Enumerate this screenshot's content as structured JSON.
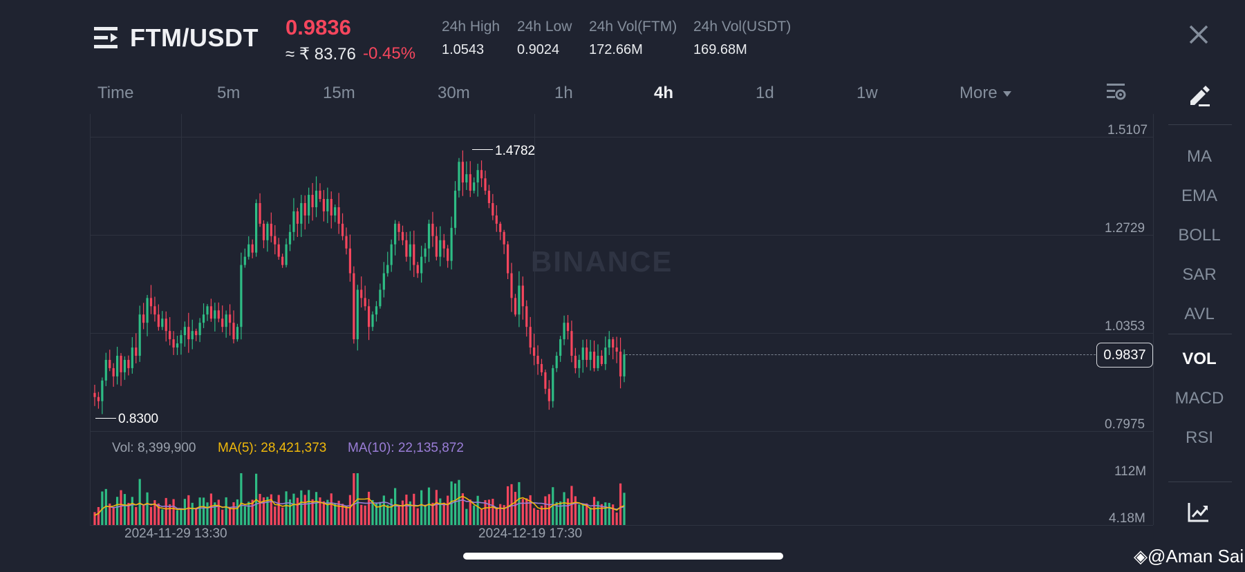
{
  "header": {
    "pair": "FTM/USDT",
    "price": "0.9836",
    "inr_value": "≈ ₹ 83.76",
    "change": "-0.45%",
    "stats": [
      {
        "label": "24h High",
        "value": "1.0543"
      },
      {
        "label": "24h Low",
        "value": "0.9024"
      },
      {
        "label": "24h Vol(FTM)",
        "value": "172.66M"
      },
      {
        "label": "24h Vol(USDT)",
        "value": "169.68M"
      }
    ]
  },
  "timeframes": {
    "time": "Time",
    "items": [
      "5m",
      "15m",
      "30m",
      "1h",
      "4h",
      "1d",
      "1w"
    ],
    "active": "4h",
    "more": "More"
  },
  "indicators": {
    "items": [
      "MA",
      "EMA",
      "BOLL",
      "SAR",
      "AVL",
      "VOL",
      "MACD",
      "RSI"
    ],
    "active": "VOL"
  },
  "chart": {
    "watermark": "BINANCE",
    "price_ticks": [
      "1.5107",
      "1.2729",
      "1.0353",
      "0.7975"
    ],
    "high_label": "1.4782",
    "low_label": "0.8300",
    "last_price": "0.9837",
    "volume_legend": {
      "vol": "Vol: 8,399,900",
      "ma5": "MA(5): 28,421,373",
      "ma10": "MA(10): 22,135,872"
    },
    "volume_ticks": [
      "112M",
      "4.18M"
    ],
    "dates": [
      "2024-11-29 13:30",
      "2024-12-19 17:30"
    ],
    "colors": {
      "up": "#2ebd85",
      "down": "#f6465d",
      "ma5": "#f0b90b",
      "ma10": "#9b7ed8",
      "background": "#1f2330"
    }
  },
  "chart_data": {
    "type": "candlestick",
    "ylim": [
      0.7975,
      1.5107
    ],
    "closes": [
      0.88,
      0.87,
      0.92,
      0.97,
      0.95,
      0.93,
      0.98,
      0.94,
      0.97,
      0.95,
      1.0,
      0.98,
      1.08,
      1.06,
      1.12,
      1.1,
      1.08,
      1.05,
      1.07,
      1.04,
      1.02,
      1.0,
      1.01,
      1.03,
      1.05,
      1.02,
      1.04,
      1.03,
      1.06,
      1.08,
      1.1,
      1.07,
      1.09,
      1.07,
      1.05,
      1.08,
      1.06,
      1.02,
      1.05,
      1.2,
      1.22,
      1.25,
      1.23,
      1.35,
      1.3,
      1.26,
      1.3,
      1.27,
      1.25,
      1.22,
      1.2,
      1.25,
      1.28,
      1.33,
      1.3,
      1.35,
      1.32,
      1.37,
      1.34,
      1.38,
      1.36,
      1.33,
      1.36,
      1.32,
      1.34,
      1.3,
      1.27,
      1.24,
      1.18,
      1.02,
      1.14,
      1.12,
      1.1,
      1.05,
      1.08,
      1.1,
      1.14,
      1.18,
      1.2,
      1.25,
      1.3,
      1.28,
      1.26,
      1.22,
      1.25,
      1.2,
      1.18,
      1.22,
      1.24,
      1.3,
      1.27,
      1.22,
      1.26,
      1.24,
      1.21,
      1.29,
      1.38,
      1.45,
      1.4,
      1.42,
      1.38,
      1.4,
      1.43,
      1.41,
      1.38,
      1.35,
      1.32,
      1.3,
      1.28,
      1.25,
      1.18,
      1.12,
      1.08,
      1.15,
      1.1,
      1.05,
      1.0,
      0.98,
      0.96,
      0.94,
      0.9,
      0.87,
      0.95,
      0.98,
      1.02,
      1.06,
      1.04,
      0.98,
      0.95,
      0.97,
      1.0,
      0.97,
      0.99,
      0.95,
      0.98,
      0.96,
      1.0,
      1.02,
      1.0,
      0.99,
      0.93,
      0.9837
    ],
    "volume_ticks_millions": [
      112,
      4.18
    ]
  }
}
